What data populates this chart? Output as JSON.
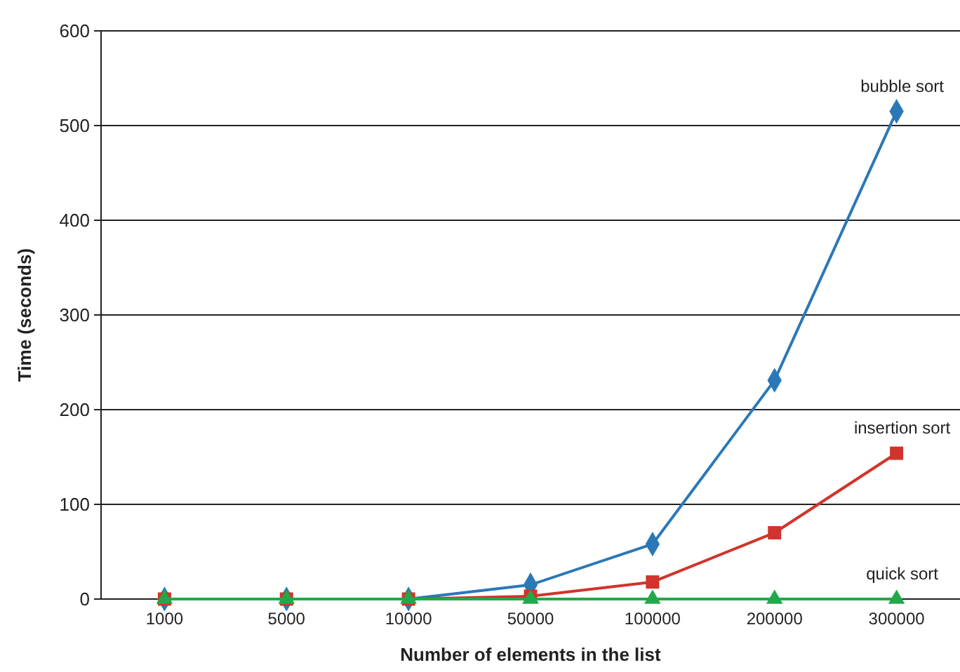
{
  "chart_data": {
    "type": "line",
    "xlabel": "Number of elements in the list",
    "ylabel": "Time (seconds)",
    "categories": [
      "1000",
      "5000",
      "10000",
      "50000",
      "100000",
      "200000",
      "300000"
    ],
    "ylim": [
      0,
      600
    ],
    "yticks": [
      0,
      100,
      200,
      300,
      400,
      500,
      600
    ],
    "grid": "y",
    "series": [
      {
        "name": "bubble sort",
        "color": "#2a78b8",
        "marker": "diamond",
        "values": [
          0,
          0,
          0,
          15,
          58,
          231,
          515
        ]
      },
      {
        "name": "insertion sort",
        "color": "#d0342c",
        "marker": "square",
        "values": [
          0,
          0,
          0,
          3,
          18,
          70,
          154
        ]
      },
      {
        "name": "quick sort",
        "color": "#22a84a",
        "marker": "triangle",
        "values": [
          0,
          0,
          0,
          0,
          0,
          0,
          0
        ]
      }
    ]
  }
}
